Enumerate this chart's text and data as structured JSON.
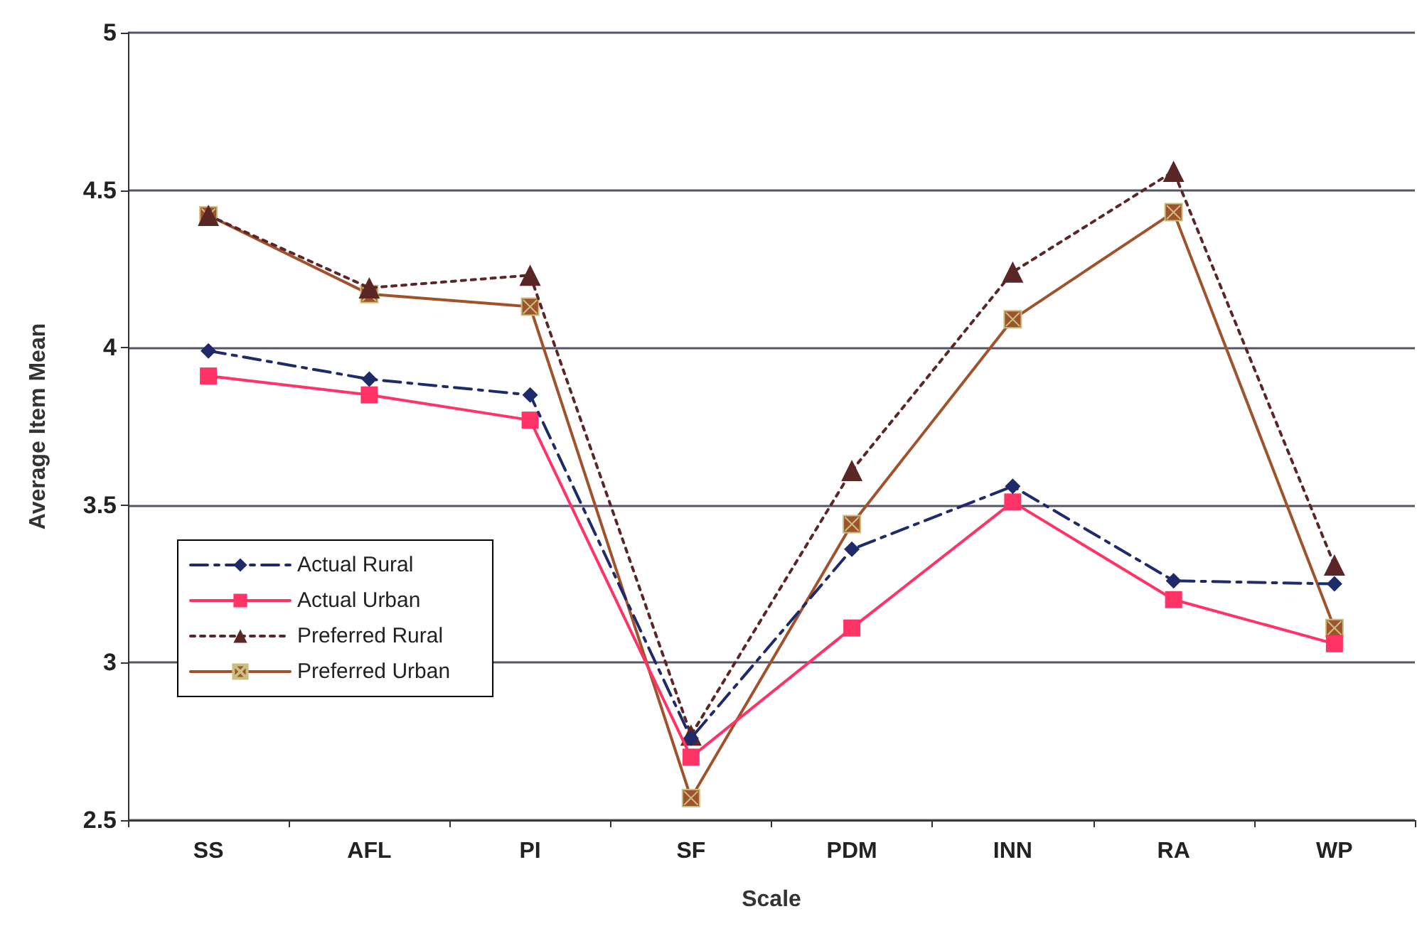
{
  "chart_data": {
    "type": "line",
    "xlabel": "Scale",
    "ylabel": "Average Item Mean",
    "categories": [
      "SS",
      "AFL",
      "PI",
      "SF",
      "PDM",
      "INN",
      "RA",
      "WP"
    ],
    "series": [
      {
        "name": "Actual Rural",
        "color": "#1f2a6b",
        "marker": "diamond",
        "line_style": "dashed",
        "values": [
          3.99,
          3.9,
          3.85,
          2.76,
          3.36,
          3.56,
          3.26,
          3.25
        ]
      },
      {
        "name": "Actual Urban",
        "color": "#ff3366",
        "marker": "square",
        "line_style": "solid",
        "values": [
          3.91,
          3.85,
          3.77,
          2.7,
          3.11,
          3.51,
          3.2,
          3.06
        ]
      },
      {
        "name": "Preferred Rural",
        "color": "#5a2626",
        "marker": "triangle",
        "line_style": "dotted",
        "values": [
          4.42,
          4.19,
          4.23,
          2.77,
          3.61,
          4.24,
          4.56,
          3.31
        ]
      },
      {
        "name": "Preferred Urban",
        "color": "#a0522d",
        "marker": "cross",
        "line_style": "solid",
        "values": [
          4.42,
          4.17,
          4.13,
          2.57,
          3.44,
          4.09,
          4.43,
          3.11
        ]
      }
    ],
    "ylim": [
      2.5,
      5
    ],
    "yticks": [
      2.5,
      3,
      3.5,
      4,
      4.5,
      5
    ],
    "grid": "y",
    "legend": "left"
  }
}
